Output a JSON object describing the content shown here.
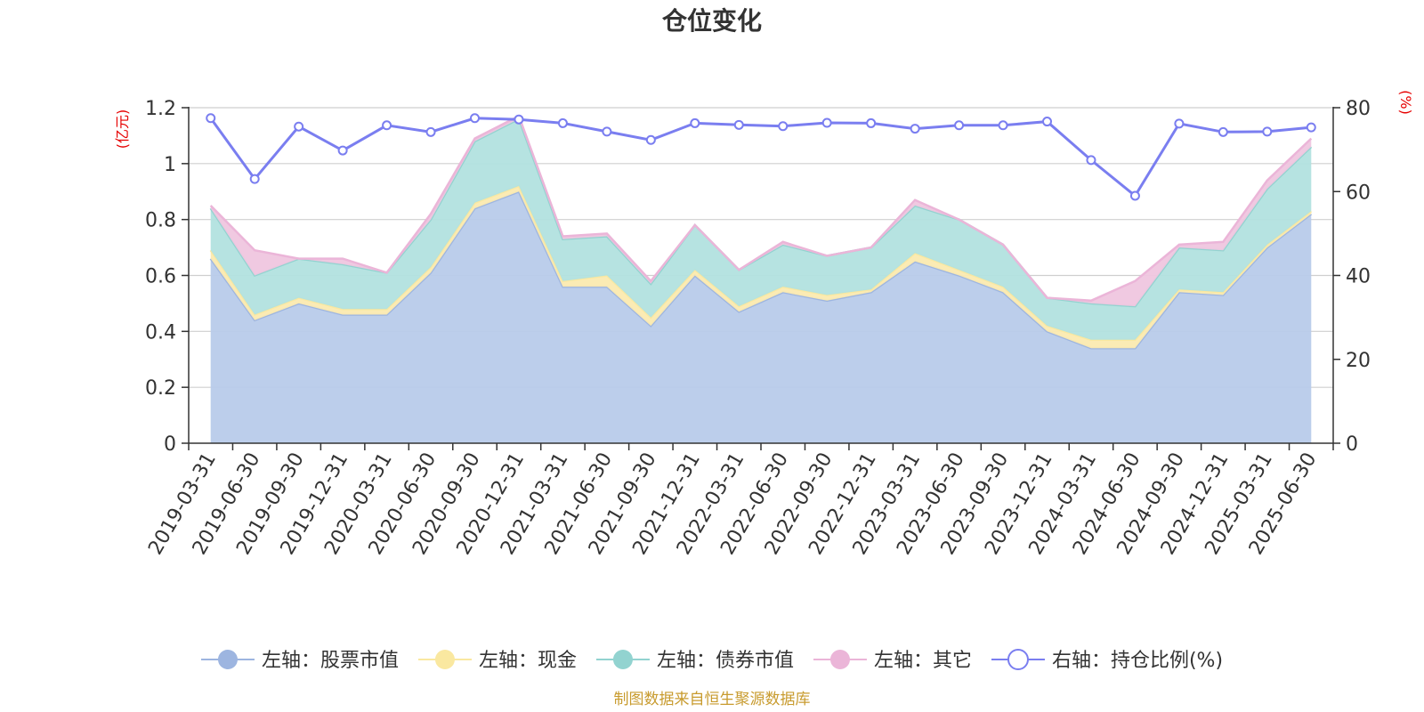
{
  "chart_data": {
    "type": "area",
    "title": "仓位变化",
    "left_unit": "(亿元)",
    "right_unit": "(%)",
    "categories": [
      "2019-03-31",
      "2019-06-30",
      "2019-09-30",
      "2019-12-31",
      "2020-03-31",
      "2020-06-30",
      "2020-09-30",
      "2020-12-31",
      "2021-03-31",
      "2021-06-30",
      "2021-09-30",
      "2021-12-31",
      "2022-03-31",
      "2022-06-30",
      "2022-09-30",
      "2022-12-31",
      "2023-03-31",
      "2023-06-30",
      "2023-09-30",
      "2023-12-31",
      "2024-03-31",
      "2024-06-30",
      "2024-09-30",
      "2024-12-31",
      "2025-03-31",
      "2025-06-30"
    ],
    "left_axis": {
      "min": 0,
      "max": 1.2,
      "ticks": [
        0,
        0.2,
        0.4,
        0.6,
        0.8,
        1,
        1.2
      ],
      "tick_labels": [
        "0",
        "0.2",
        "0.4",
        "0.6",
        "0.8",
        "1",
        "1.2"
      ]
    },
    "right_axis": {
      "min": 0,
      "max": 80,
      "ticks": [
        0,
        20,
        40,
        60,
        80
      ],
      "tick_labels": [
        "0",
        "20",
        "40",
        "60",
        "80"
      ]
    },
    "stacked_series": [
      {
        "name": "左轴：股票市值",
        "color": "#9db5e0",
        "fill": "#b8cbea",
        "values": [
          0.66,
          0.44,
          0.5,
          0.46,
          0.46,
          0.61,
          0.84,
          0.9,
          0.56,
          0.56,
          0.42,
          0.6,
          0.47,
          0.54,
          0.51,
          0.54,
          0.65,
          0.6,
          0.54,
          0.4,
          0.34,
          0.34,
          0.54,
          0.53,
          0.7,
          0.82
        ]
      },
      {
        "name": "左轴：现金",
        "color": "#fae8a0",
        "fill": "#fbeab0",
        "values": [
          0.03,
          0.02,
          0.02,
          0.02,
          0.02,
          0.02,
          0.02,
          0.02,
          0.02,
          0.04,
          0.03,
          0.02,
          0.02,
          0.02,
          0.02,
          0.01,
          0.03,
          0.02,
          0.02,
          0.02,
          0.03,
          0.03,
          0.01,
          0.01,
          0.01,
          0.01
        ]
      },
      {
        "name": "左轴：债券市值",
        "color": "#92d3d0",
        "fill": "#b2e1df",
        "values": [
          0.15,
          0.14,
          0.14,
          0.16,
          0.13,
          0.17,
          0.22,
          0.24,
          0.15,
          0.14,
          0.12,
          0.16,
          0.13,
          0.15,
          0.14,
          0.15,
          0.17,
          0.18,
          0.15,
          0.1,
          0.13,
          0.12,
          0.15,
          0.15,
          0.2,
          0.23
        ]
      },
      {
        "name": "左轴：其它",
        "color": "#ebb5d8",
        "fill": "#efc6df",
        "values": [
          0.01,
          0.09,
          0.0,
          0.02,
          0.0,
          0.02,
          0.01,
          0.01,
          0.01,
          0.01,
          0.01,
          0.0,
          0.0,
          0.01,
          0.0,
          0.0,
          0.02,
          0.0,
          0.0,
          0.0,
          0.01,
          0.09,
          0.01,
          0.03,
          0.03,
          0.03
        ]
      }
    ],
    "line_series": {
      "name": "右轴：持仓比例(%)",
      "color": "#7a7ef0",
      "values": [
        77.5,
        63.0,
        75.5,
        69.8,
        75.8,
        74.2,
        77.5,
        77.2,
        76.3,
        74.3,
        72.3,
        76.3,
        75.9,
        75.6,
        76.4,
        76.3,
        75.0,
        75.8,
        75.8,
        76.7,
        67.5,
        59.0,
        76.2,
        74.2,
        74.3,
        75.3
      ]
    },
    "legend_position": "bottom-center",
    "grid": true
  },
  "source": "制图数据来自恒生聚源数据库"
}
